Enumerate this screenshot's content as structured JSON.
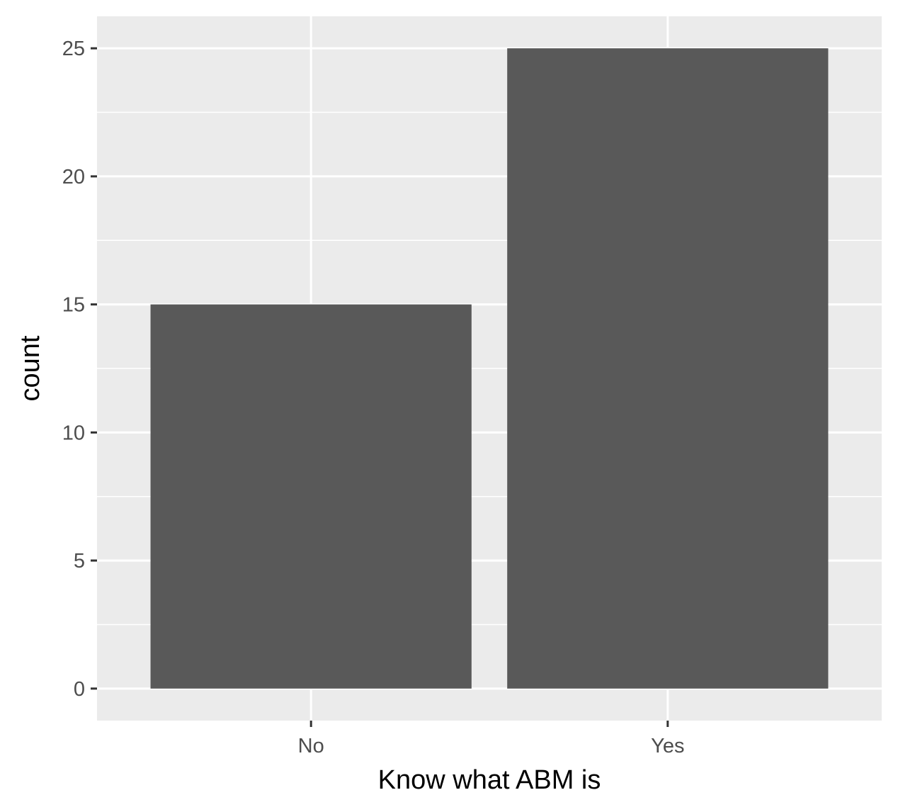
{
  "chart_data": {
    "type": "bar",
    "title": "",
    "xlabel": "Know what ABM is",
    "ylabel": "count",
    "categories": [
      "No",
      "Yes"
    ],
    "values": [
      15,
      25
    ],
    "ylim": [
      -1.25,
      26.25
    ],
    "yticks": [
      0,
      5,
      10,
      15,
      20,
      25
    ],
    "grid": true,
    "colors": {
      "bar": "#595959",
      "panel": "#ebebeb",
      "grid": "#ffffff",
      "tick": "#333333",
      "tick_text": "#4d4d4d",
      "axis_title": "#000000"
    }
  }
}
